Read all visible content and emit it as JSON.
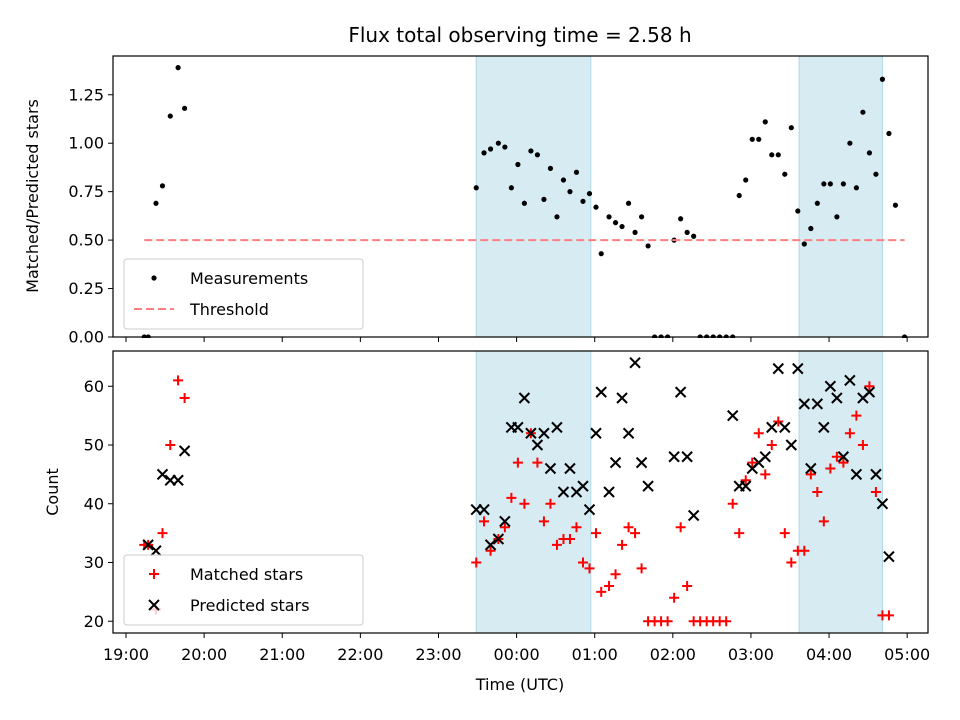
{
  "chart_data": [
    {
      "type": "scatter",
      "title": "Flux total observing time = 2.58 h",
      "xlabel": "",
      "ylabel": "Matched/Predicted stars",
      "xlim": [
        "18:50",
        "05:16"
      ],
      "ylim": [
        0,
        1.45
      ],
      "y_ticks": [
        0.0,
        0.25,
        0.5,
        0.75,
        1.0,
        1.25
      ],
      "y_tick_labels": [
        "0.00",
        "0.25",
        "0.50",
        "0.75",
        "1.00",
        "1.25"
      ],
      "shaded_intervals": [
        [
          "23:29",
          "00:57"
        ],
        [
          "03:37",
          "04:41"
        ]
      ],
      "shade_color": "#add8e6",
      "legend": {
        "position": "lower-left",
        "labels": [
          "Measurements",
          "Threshold"
        ]
      },
      "series": [
        {
          "name": "Measurements",
          "marker": "dot",
          "color": "#000000",
          "points": [
            [
              "19:14",
              0.0
            ],
            [
              "19:17",
              0.0
            ],
            [
              "19:23",
              0.69
            ],
            [
              "19:28",
              0.78
            ],
            [
              "19:34",
              1.14
            ],
            [
              "19:40",
              1.39
            ],
            [
              "19:45",
              1.18
            ],
            [
              "23:29",
              0.77
            ],
            [
              "23:35",
              0.95
            ],
            [
              "23:40",
              0.97
            ],
            [
              "23:46",
              1.0
            ],
            [
              "23:51",
              0.98
            ],
            [
              "23:56",
              0.77
            ],
            [
              "00:01",
              0.89
            ],
            [
              "00:06",
              0.69
            ],
            [
              "00:11",
              0.96
            ],
            [
              "00:16",
              0.94
            ],
            [
              "00:21",
              0.71
            ],
            [
              "00:26",
              0.87
            ],
            [
              "00:31",
              0.62
            ],
            [
              "00:36",
              0.81
            ],
            [
              "00:41",
              0.75
            ],
            [
              "00:46",
              0.85
            ],
            [
              "00:51",
              0.7
            ],
            [
              "00:56",
              0.74
            ],
            [
              "01:01",
              0.67
            ],
            [
              "01:05",
              0.43
            ],
            [
              "01:11",
              0.62
            ],
            [
              "01:16",
              0.59
            ],
            [
              "01:21",
              0.57
            ],
            [
              "01:26",
              0.69
            ],
            [
              "01:31",
              0.54
            ],
            [
              "01:36",
              0.62
            ],
            [
              "01:41",
              0.47
            ],
            [
              "01:46",
              0.0
            ],
            [
              "01:51",
              0.0
            ],
            [
              "01:56",
              0.0
            ],
            [
              "02:01",
              0.5
            ],
            [
              "02:06",
              0.61
            ],
            [
              "02:11",
              0.54
            ],
            [
              "02:16",
              0.52
            ],
            [
              "02:21",
              0.0
            ],
            [
              "02:26",
              0.0
            ],
            [
              "02:31",
              0.0
            ],
            [
              "02:36",
              0.0
            ],
            [
              "02:41",
              0.0
            ],
            [
              "02:46",
              0.0
            ],
            [
              "02:51",
              0.73
            ],
            [
              "02:56",
              0.81
            ],
            [
              "03:01",
              1.02
            ],
            [
              "03:06",
              1.02
            ],
            [
              "03:11",
              1.11
            ],
            [
              "03:16",
              0.94
            ],
            [
              "03:21",
              0.94
            ],
            [
              "03:26",
              0.84
            ],
            [
              "03:31",
              1.08
            ],
            [
              "03:36",
              0.65
            ],
            [
              "03:41",
              0.48
            ],
            [
              "03:46",
              0.56
            ],
            [
              "03:51",
              0.69
            ],
            [
              "03:56",
              0.79
            ],
            [
              "04:01",
              0.79
            ],
            [
              "04:06",
              0.62
            ],
            [
              "04:11",
              0.79
            ],
            [
              "04:16",
              1.0
            ],
            [
              "04:21",
              0.77
            ],
            [
              "04:26",
              1.16
            ],
            [
              "04:31",
              0.95
            ],
            [
              "04:36",
              0.84
            ],
            [
              "04:41",
              1.33
            ],
            [
              "04:46",
              1.05
            ],
            [
              "04:51",
              0.68
            ],
            [
              "04:58",
              0.0
            ]
          ]
        },
        {
          "name": "Threshold",
          "line_style": "dashed",
          "color": "#ff7f7f",
          "points": [
            [
              "19:14",
              0.5
            ],
            [
              "04:58",
              0.5
            ]
          ]
        }
      ]
    },
    {
      "type": "scatter",
      "title": "",
      "xlabel": "Time (UTC)",
      "ylabel": "Count",
      "xlim": [
        "18:50",
        "05:16"
      ],
      "ylim": [
        18,
        66
      ],
      "y_ticks": [
        20,
        30,
        40,
        50,
        60
      ],
      "y_tick_labels": [
        "20",
        "30",
        "40",
        "50",
        "60"
      ],
      "x_ticks": [
        "19:00",
        "20:00",
        "21:00",
        "22:00",
        "23:00",
        "00:00",
        "01:00",
        "02:00",
        "03:00",
        "04:00",
        "05:00"
      ],
      "x_tick_labels": [
        "19:00",
        "20:00",
        "21:00",
        "22:00",
        "23:00",
        "00:00",
        "01:00",
        "02:00",
        "03:00",
        "04:00",
        "05:00"
      ],
      "shaded_intervals": [
        [
          "23:29",
          "00:57"
        ],
        [
          "03:37",
          "04:41"
        ]
      ],
      "shade_color": "#add8e6",
      "legend": {
        "position": "lower-left",
        "labels": [
          "Matched stars",
          "Predicted stars"
        ]
      },
      "series": [
        {
          "name": "Matched stars",
          "marker": "plus",
          "color": "#ff0000",
          "points": [
            [
              "19:14",
              33
            ],
            [
              "19:17",
              33
            ],
            [
              "19:23",
              22
            ],
            [
              "19:28",
              35
            ],
            [
              "19:34",
              50
            ],
            [
              "19:40",
              61
            ],
            [
              "19:45",
              58
            ],
            [
              "23:29",
              30
            ],
            [
              "23:35",
              37
            ],
            [
              "23:40",
              32
            ],
            [
              "23:46",
              34
            ],
            [
              "23:51",
              36
            ],
            [
              "23:56",
              41
            ],
            [
              "00:01",
              47
            ],
            [
              "00:06",
              40
            ],
            [
              "00:11",
              52
            ],
            [
              "00:16",
              47
            ],
            [
              "00:21",
              37
            ],
            [
              "00:26",
              40
            ],
            [
              "00:31",
              33
            ],
            [
              "00:36",
              34
            ],
            [
              "00:41",
              34
            ],
            [
              "00:46",
              36
            ],
            [
              "00:51",
              30
            ],
            [
              "00:56",
              29
            ],
            [
              "01:01",
              35
            ],
            [
              "01:05",
              25
            ],
            [
              "01:11",
              26
            ],
            [
              "01:16",
              28
            ],
            [
              "01:21",
              33
            ],
            [
              "01:26",
              36
            ],
            [
              "01:31",
              35
            ],
            [
              "01:36",
              29
            ],
            [
              "01:41",
              20
            ],
            [
              "01:46",
              20
            ],
            [
              "01:51",
              20
            ],
            [
              "01:56",
              20
            ],
            [
              "02:01",
              24
            ],
            [
              "02:06",
              36
            ],
            [
              "02:11",
              26
            ],
            [
              "02:16",
              20
            ],
            [
              "02:21",
              20
            ],
            [
              "02:26",
              20
            ],
            [
              "02:31",
              20
            ],
            [
              "02:36",
              20
            ],
            [
              "02:41",
              20
            ],
            [
              "02:46",
              40
            ],
            [
              "02:51",
              35
            ],
            [
              "02:56",
              44
            ],
            [
              "03:01",
              47
            ],
            [
              "03:06",
              52
            ],
            [
              "03:11",
              45
            ],
            [
              "03:16",
              50
            ],
            [
              "03:21",
              54
            ],
            [
              "03:26",
              35
            ],
            [
              "03:31",
              30
            ],
            [
              "03:36",
              32
            ],
            [
              "03:41",
              32
            ],
            [
              "03:46",
              45
            ],
            [
              "03:51",
              42
            ],
            [
              "03:56",
              37
            ],
            [
              "04:01",
              46
            ],
            [
              "04:06",
              48
            ],
            [
              "04:11",
              47
            ],
            [
              "04:16",
              52
            ],
            [
              "04:21",
              55
            ],
            [
              "04:26",
              50
            ],
            [
              "04:31",
              60
            ],
            [
              "04:36",
              42
            ],
            [
              "04:41",
              21
            ],
            [
              "04:46",
              21
            ]
          ]
        },
        {
          "name": "Predicted stars",
          "marker": "x",
          "color": "#000000",
          "points": [
            [
              "19:17",
              33
            ],
            [
              "19:23",
              32
            ],
            [
              "19:28",
              45
            ],
            [
              "19:34",
              44
            ],
            [
              "19:40",
              44
            ],
            [
              "19:45",
              49
            ],
            [
              "23:29",
              39
            ],
            [
              "23:35",
              39
            ],
            [
              "23:40",
              33
            ],
            [
              "23:46",
              34
            ],
            [
              "23:51",
              37
            ],
            [
              "23:56",
              53
            ],
            [
              "00:01",
              53
            ],
            [
              "00:06",
              58
            ],
            [
              "00:11",
              52
            ],
            [
              "00:16",
              50
            ],
            [
              "00:21",
              52
            ],
            [
              "00:26",
              46
            ],
            [
              "00:31",
              53
            ],
            [
              "00:36",
              42
            ],
            [
              "00:41",
              46
            ],
            [
              "00:46",
              42
            ],
            [
              "00:51",
              43
            ],
            [
              "00:56",
              39
            ],
            [
              "01:01",
              52
            ],
            [
              "01:05",
              59
            ],
            [
              "01:11",
              42
            ],
            [
              "01:16",
              47
            ],
            [
              "01:21",
              58
            ],
            [
              "01:26",
              52
            ],
            [
              "01:31",
              64
            ],
            [
              "01:36",
              47
            ],
            [
              "01:41",
              43
            ],
            [
              "02:01",
              48
            ],
            [
              "02:06",
              59
            ],
            [
              "02:11",
              48
            ],
            [
              "02:16",
              38
            ],
            [
              "02:46",
              55
            ],
            [
              "02:51",
              43
            ],
            [
              "02:56",
              43
            ],
            [
              "03:01",
              46
            ],
            [
              "03:06",
              47
            ],
            [
              "03:11",
              48
            ],
            [
              "03:16",
              53
            ],
            [
              "03:21",
              63
            ],
            [
              "03:26",
              53
            ],
            [
              "03:31",
              50
            ],
            [
              "03:36",
              63
            ],
            [
              "03:41",
              57
            ],
            [
              "03:46",
              46
            ],
            [
              "03:51",
              57
            ],
            [
              "03:56",
              53
            ],
            [
              "04:01",
              60
            ],
            [
              "04:06",
              58
            ],
            [
              "04:11",
              48
            ],
            [
              "04:16",
              61
            ],
            [
              "04:21",
              45
            ],
            [
              "04:26",
              58
            ],
            [
              "04:31",
              59
            ],
            [
              "04:36",
              45
            ],
            [
              "04:41",
              40
            ],
            [
              "04:46",
              31
            ]
          ]
        }
      ]
    }
  ]
}
